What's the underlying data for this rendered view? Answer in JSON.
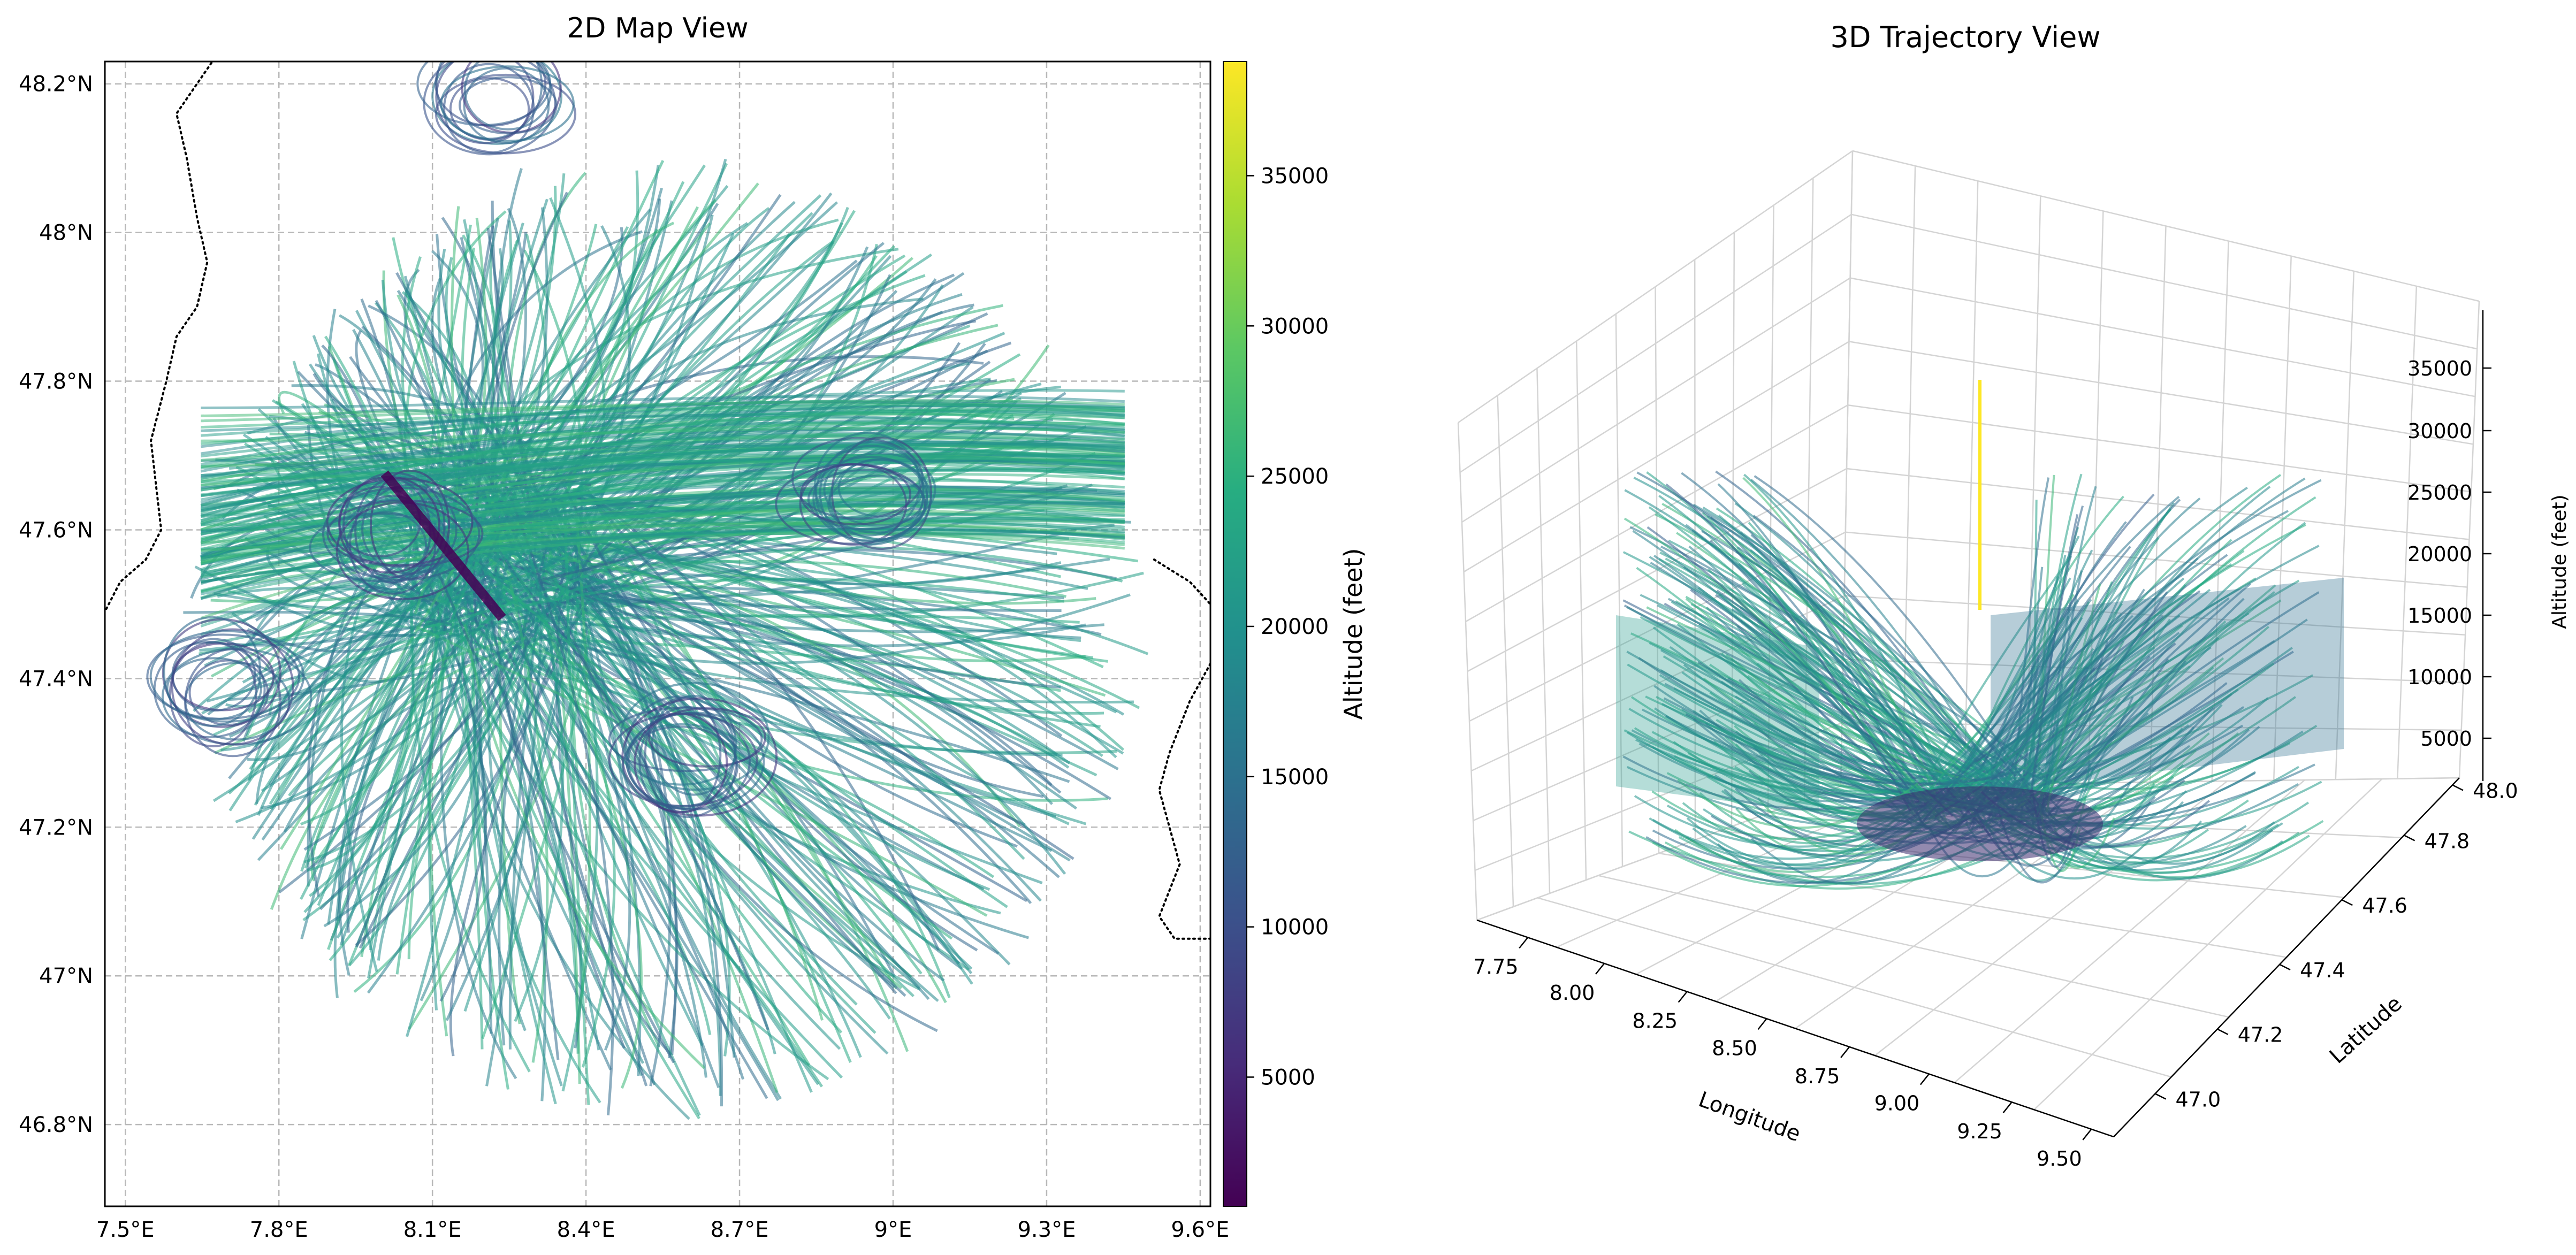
{
  "chart_data": [
    {
      "type": "line",
      "title": "2D Map View",
      "x_ticks": [
        "7.5°E",
        "7.8°E",
        "8.1°E",
        "8.4°E",
        "8.7°E",
        "9°E",
        "9.3°E",
        "9.6°E"
      ],
      "x_tick_values": [
        7.5,
        7.8,
        8.1,
        8.4,
        8.7,
        9.0,
        9.3,
        9.6
      ],
      "y_ticks": [
        "46.8°N",
        "47°N",
        "47.2°N",
        "47.4°N",
        "47.6°N",
        "47.8°N",
        "48°N",
        "48.2°N"
      ],
      "y_tick_values": [
        46.8,
        47.0,
        47.2,
        47.4,
        47.6,
        47.8,
        48.0,
        48.2
      ],
      "xlim": [
        7.46,
        9.62
      ],
      "ylim": [
        46.69,
        48.23
      ],
      "grid": true,
      "coverage_circle": {
        "center_lon": 8.55,
        "center_lat": 47.46,
        "radius_lon": 0.95,
        "radius_lat": 0.66
      },
      "colorbar": {
        "label": "Altitude (feet)",
        "ticks": [
          "5000",
          "10000",
          "15000",
          "20000",
          "25000",
          "30000",
          "35000"
        ],
        "tick_values": [
          5000,
          10000,
          15000,
          20000,
          25000,
          30000,
          35000
        ],
        "range": [
          700,
          38800
        ],
        "colormap": "viridis"
      },
      "border_lines": [
        [
          [
            7.68,
            48.24
          ],
          [
            7.64,
            48.2
          ],
          [
            7.6,
            48.16
          ],
          [
            7.62,
            48.1
          ],
          [
            7.64,
            48.02
          ],
          [
            7.66,
            47.96
          ],
          [
            7.64,
            47.9
          ],
          [
            7.6,
            47.86
          ],
          [
            7.58,
            47.8
          ],
          [
            7.55,
            47.72
          ],
          [
            7.56,
            47.66
          ],
          [
            7.57,
            47.6
          ],
          [
            7.54,
            47.56
          ],
          [
            7.49,
            47.53
          ],
          [
            7.46,
            47.49
          ]
        ],
        [
          [
            9.51,
            47.56
          ],
          [
            9.58,
            47.53
          ],
          [
            9.62,
            47.5
          ]
        ],
        [
          [
            9.62,
            47.42
          ],
          [
            9.58,
            47.37
          ],
          [
            9.54,
            47.3
          ],
          [
            9.52,
            47.25
          ],
          [
            9.54,
            47.2
          ],
          [
            9.56,
            47.15
          ],
          [
            9.52,
            47.08
          ],
          [
            9.55,
            47.05
          ],
          [
            9.62,
            47.05
          ]
        ]
      ]
    },
    {
      "type": "line",
      "title": "3D Trajectory View",
      "xlabel": "Longitude",
      "ylabel": "Latitude",
      "zlabel": "Altitude (feet)",
      "x_ticks": [
        "7.75",
        "8.00",
        "8.25",
        "8.50",
        "8.75",
        "9.00",
        "9.25",
        "9.50"
      ],
      "y_ticks": [
        "47.0",
        "47.2",
        "47.4",
        "47.6",
        "47.8",
        "48.0"
      ],
      "z_ticks": [
        "5000",
        "10000",
        "15000",
        "20000",
        "25000",
        "30000",
        "35000"
      ],
      "grid": true
    }
  ]
}
